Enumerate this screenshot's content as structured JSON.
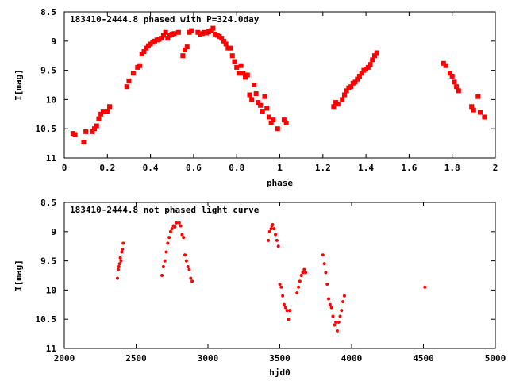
{
  "chart_data": [
    {
      "type": "scatter",
      "title": "183410-2444.8 phased with P=324.0day",
      "xlabel": "phase",
      "ylabel": "I[mag]",
      "xlim": [
        0,
        2
      ],
      "ylim": [
        8.5,
        11
      ],
      "y_inverted": true,
      "xticks": [
        "0",
        "0.2",
        "0.4",
        "0.6",
        "0.8",
        "1",
        "1.2",
        "1.4",
        "1.6",
        "1.8",
        "2"
      ],
      "yticks": [
        "8.5",
        "9",
        "9.5",
        "10",
        "10.5",
        "11"
      ],
      "marker": "filled-square",
      "color": "#ff0000",
      "series": [
        {
          "x": [
            0.04,
            0.05,
            0.09,
            0.1,
            0.13,
            0.14,
            0.15,
            0.16,
            0.17,
            0.18,
            0.19,
            0.2,
            0.21,
            0.29,
            0.3,
            0.32,
            0.34,
            0.35,
            0.36,
            0.37,
            0.38,
            0.39,
            0.4,
            0.41,
            0.42,
            0.43,
            0.44,
            0.45,
            0.46,
            0.47,
            0.48,
            0.49,
            0.5,
            0.51,
            0.53,
            0.55,
            0.56,
            0.57,
            0.58,
            0.59,
            0.62,
            0.63,
            0.64,
            0.65,
            0.66,
            0.67,
            0.68,
            0.69,
            0.7,
            0.71,
            0.72,
            0.73,
            0.74,
            0.75,
            0.76,
            0.77,
            0.78,
            0.79,
            0.8,
            0.81,
            0.82,
            0.83,
            0.84,
            0.85,
            0.86,
            0.87,
            0.88,
            0.89,
            0.9,
            0.91,
            0.92,
            0.93,
            0.94,
            0.95,
            0.96,
            0.97,
            0.99,
            1.02,
            1.03,
            1.25,
            1.26,
            1.27,
            1.29,
            1.3,
            1.31,
            1.32,
            1.33,
            1.34,
            1.35,
            1.36,
            1.37,
            1.38,
            1.39,
            1.4,
            1.41,
            1.42,
            1.43,
            1.44,
            1.45,
            1.76,
            1.77,
            1.79,
            1.8,
            1.81,
            1.82,
            1.83,
            1.89,
            1.9,
            1.92,
            1.93,
            1.95
          ],
          "y": [
            10.58,
            10.6,
            10.73,
            10.55,
            10.55,
            10.5,
            10.45,
            10.33,
            10.25,
            10.2,
            10.21,
            10.2,
            10.12,
            9.78,
            9.68,
            9.55,
            9.45,
            9.42,
            9.22,
            9.18,
            9.12,
            9.08,
            9.05,
            9.02,
            9.0,
            8.98,
            8.97,
            8.95,
            8.9,
            8.85,
            8.95,
            8.9,
            8.88,
            8.87,
            8.85,
            9.25,
            9.15,
            9.1,
            8.85,
            8.82,
            8.85,
            8.88,
            8.87,
            8.85,
            8.86,
            8.84,
            8.82,
            8.78,
            8.88,
            8.9,
            8.92,
            8.95,
            9.0,
            9.05,
            9.12,
            9.12,
            9.25,
            9.35,
            9.45,
            9.55,
            9.42,
            9.55,
            9.62,
            9.58,
            9.92,
            10.0,
            9.75,
            9.9,
            10.05,
            10.1,
            10.2,
            9.95,
            10.15,
            10.3,
            10.4,
            10.35,
            10.5,
            10.35,
            10.4,
            10.12,
            10.05,
            10.08,
            10.0,
            9.92,
            9.85,
            9.8,
            9.78,
            9.72,
            9.7,
            9.65,
            9.6,
            9.55,
            9.5,
            9.48,
            9.45,
            9.4,
            9.32,
            9.25,
            9.2,
            9.38,
            9.42,
            9.55,
            9.6,
            9.7,
            9.78,
            9.85,
            10.12,
            10.18,
            9.95,
            10.22,
            10.3
          ]
        }
      ]
    },
    {
      "type": "scatter",
      "title": "183410-2444.8 not phased light curve",
      "xlabel": "hjd0",
      "ylabel": "I[mag]",
      "xlim": [
        2000,
        5000
      ],
      "ylim": [
        8.5,
        11
      ],
      "y_inverted": true,
      "xticks": [
        "2000",
        "2500",
        "3000",
        "3500",
        "4000",
        "4500",
        "5000"
      ],
      "yticks": [
        "8.5",
        "9",
        "9.5",
        "10",
        "10.5",
        "11"
      ],
      "marker": "small-dot",
      "color": "#ff0000",
      "series": [
        {
          "x": [
            2370,
            2375,
            2380,
            2385,
            2390,
            2395,
            2400,
            2405,
            2410,
            2680,
            2690,
            2700,
            2710,
            2720,
            2730,
            2740,
            2750,
            2760,
            2770,
            2780,
            2800,
            2810,
            2820,
            2830,
            2840,
            2850,
            2860,
            2870,
            2880,
            2890,
            3420,
            3430,
            3440,
            3445,
            3450,
            3460,
            3470,
            3480,
            3490,
            3500,
            3510,
            3520,
            3530,
            3540,
            3550,
            3560,
            3570,
            3620,
            3630,
            3640,
            3650,
            3660,
            3670,
            3680,
            3800,
            3810,
            3820,
            3830,
            3840,
            3850,
            3860,
            3870,
            3880,
            3890,
            3900,
            3910,
            3920,
            3930,
            3940,
            3950,
            4510
          ],
          "y": [
            9.8,
            9.65,
            9.6,
            9.55,
            9.45,
            9.5,
            9.35,
            9.3,
            9.2,
            9.75,
            9.6,
            9.5,
            9.35,
            9.2,
            9.1,
            9.0,
            8.95,
            8.9,
            8.92,
            8.85,
            8.85,
            8.9,
            9.05,
            9.1,
            9.4,
            9.5,
            9.6,
            9.65,
            9.8,
            9.85,
            9.15,
            9.0,
            8.95,
            8.9,
            8.88,
            8.95,
            9.05,
            9.15,
            9.25,
            9.9,
            9.95,
            10.1,
            10.25,
            10.3,
            10.35,
            10.5,
            10.35,
            10.05,
            9.95,
            9.85,
            9.75,
            9.7,
            9.65,
            9.7,
            9.4,
            9.55,
            9.7,
            9.9,
            10.15,
            10.25,
            10.3,
            10.45,
            10.6,
            10.55,
            10.7,
            10.55,
            10.45,
            10.35,
            10.2,
            10.1,
            9.95
          ]
        }
      ]
    }
  ]
}
